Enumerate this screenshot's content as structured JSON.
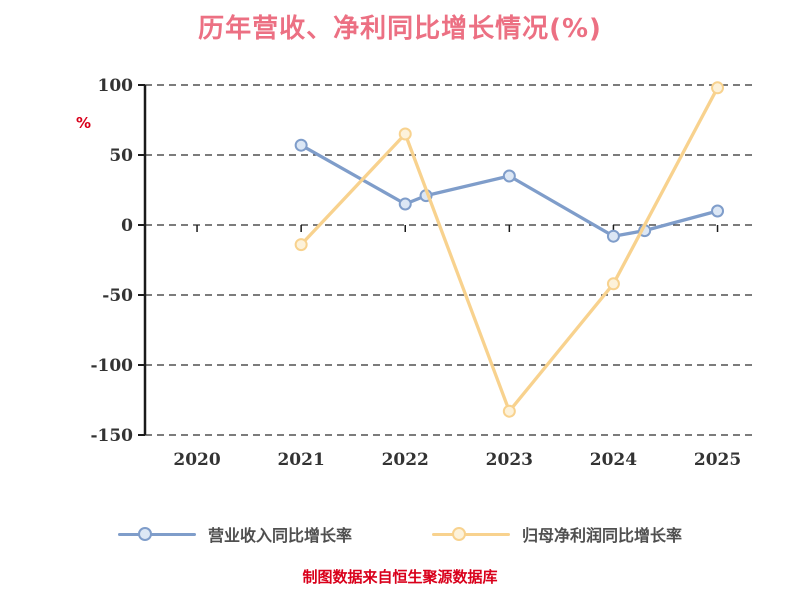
{
  "chart": {
    "source_note": "制图数据来自恒生聚源数据库",
    "colors": {
      "title": "#ec7083",
      "ylabel_text": "#d9001b",
      "source_note": "#d9001b",
      "axis": "#1a1a1a",
      "grid": "#2e2e2e",
      "tick_label": "#333333",
      "legend_label": "#4f4f4f",
      "background": "#ffffff"
    }
  },
  "chart_data": {
    "type": "line",
    "title": "历年营收、净利同比增长情况(%)",
    "ylabel": "%",
    "xlabel": "",
    "x_ticks": [
      2020,
      2021,
      2022,
      2023,
      2024,
      2025
    ],
    "y_ticks": [
      100,
      50,
      0,
      -50,
      -100,
      -150
    ],
    "xlim": [
      2019.5,
      2025.36
    ],
    "ylim": [
      -150,
      100
    ],
    "grid": "horizontal-dashed",
    "legend_position": "bottom",
    "series": [
      {
        "name": "营业收入同比增长率",
        "color": "#7f9dca",
        "marker_fill": "#dce7f5",
        "points": [
          [
            2021,
            57
          ],
          [
            2022,
            15
          ],
          [
            2022.2,
            21
          ],
          [
            2023,
            35
          ],
          [
            2024,
            -8
          ],
          [
            2024.3,
            -4
          ],
          [
            2025,
            10
          ]
        ]
      },
      {
        "name": "归母净利润同比增长率",
        "color": "#f8d28e",
        "marker_fill": "#fdf2da",
        "points": [
          [
            2021,
            -14
          ],
          [
            2022,
            65
          ],
          [
            2023,
            -133
          ],
          [
            2024,
            -42
          ],
          [
            2025,
            98
          ]
        ]
      }
    ]
  }
}
